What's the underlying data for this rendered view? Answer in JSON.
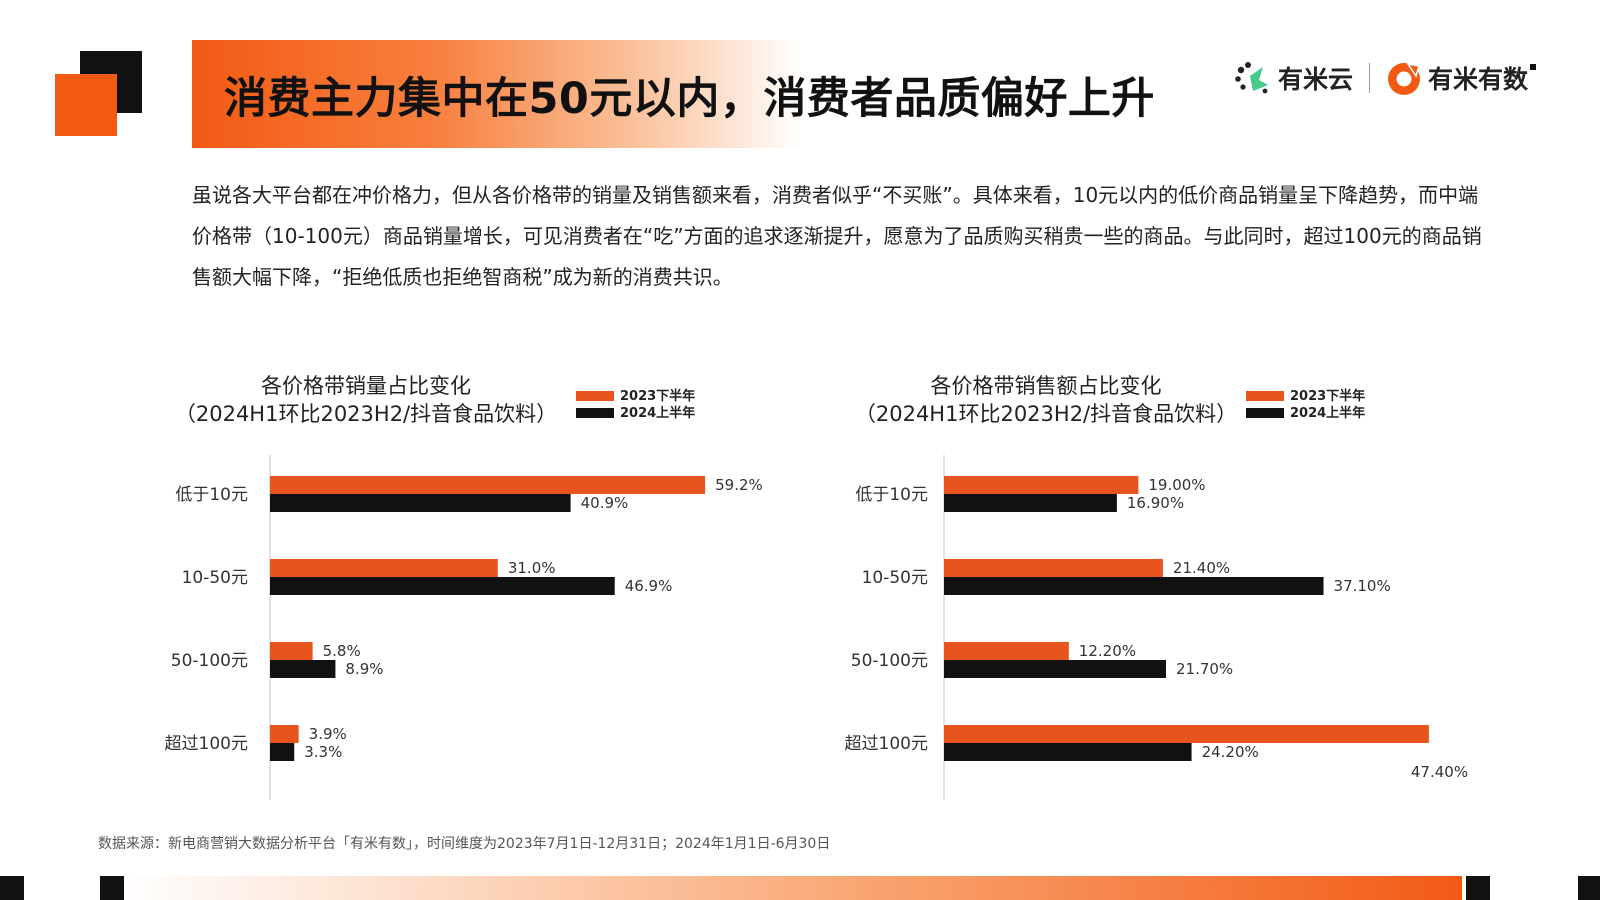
{
  "header": {
    "title": "消费主力集中在50元以内，消费者品质偏好上升",
    "logo1_text": "有米云",
    "logo2_text": "有米有数"
  },
  "intro": "虽说各大平台都在冲价格力，但从各价格带的销量及销售额来看，消费者似乎“不买账”。具体来看，10元以内的低价商品销量呈下降趋势，而中端价格带（10-100元）商品销量增长，可见消费者在“吃”方面的追求逐渐提升，愿意为了品质购买稍贵一些的商品。与此同时，超过100元的商品销售额大幅下降，“拒绝低质也拒绝智商税”成为新的消费共识。",
  "footnote": "数据来源：新电商营销大数据分析平台「有米有数」，时间维度为2023年7月1日-12月31日；2024年1月1日-6月30日",
  "colors": {
    "accent": "#f25a14",
    "bar_h2": "#e8541e",
    "bar_h1": "#111111"
  },
  "chart_data": [
    {
      "type": "bar",
      "orientation": "horizontal",
      "title": "各价格带销量占比变化",
      "subtitle": "（2024H1环比2023H2/抖音食品饮料）",
      "categories": [
        "低于10元",
        "10-50元",
        "50-100元",
        "超过100元"
      ],
      "series": [
        {
          "name": "2023下半年",
          "values": [
            59.2,
            31.0,
            5.8,
            3.9
          ],
          "labels": [
            "59.2%",
            "31.0%",
            "5.8%",
            "3.9%"
          ]
        },
        {
          "name": "2024上半年",
          "values": [
            40.9,
            46.9,
            8.9,
            3.3
          ],
          "labels": [
            "40.9%",
            "46.9%",
            "8.9%",
            "3.3%"
          ]
        }
      ],
      "unit": "%",
      "xlim": [
        0,
        60
      ],
      "legend": "top-right"
    },
    {
      "type": "bar",
      "orientation": "horizontal",
      "title": "各价格带销售额占比变化",
      "subtitle": "（2024H1环比2023H2/抖音食品饮料）",
      "categories": [
        "低于10元",
        "10-50元",
        "50-100元",
        "超过100元"
      ],
      "series": [
        {
          "name": "2023下半年",
          "values": [
            19.0,
            21.4,
            12.2,
            47.4
          ],
          "labels": [
            "19.00%",
            "21.40%",
            "12.20%",
            "47.40%"
          ]
        },
        {
          "name": "2024上半年",
          "values": [
            16.9,
            37.1,
            21.7,
            24.2
          ],
          "labels": [
            "16.90%",
            "37.10%",
            "21.70%",
            "24.20%"
          ]
        }
      ],
      "unit": "%",
      "xlim": [
        0,
        48
      ],
      "legend": "top-right"
    }
  ]
}
